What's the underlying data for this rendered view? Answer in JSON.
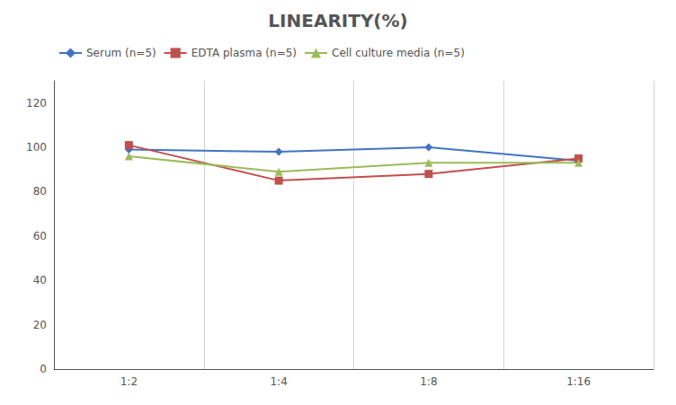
{
  "chart_data": {
    "type": "line",
    "title": "LINEARITY(%)",
    "categories": [
      "1:2",
      "1:4",
      "1:8",
      "1:16"
    ],
    "series": [
      {
        "name": "Serum (n=5)",
        "color": "#4472C4",
        "marker": "diamond",
        "values": [
          99,
          98,
          100,
          94
        ]
      },
      {
        "name": "EDTA plasma (n=5)",
        "color": "#C0504D",
        "marker": "square",
        "values": [
          101,
          85,
          88,
          95
        ]
      },
      {
        "name": "Cell culture media (n=5)",
        "color": "#9BBB59",
        "marker": "triangle",
        "values": [
          96,
          89,
          93,
          93
        ]
      }
    ],
    "ylim": [
      0,
      130
    ],
    "yticks": [
      0,
      20,
      40,
      60,
      80,
      100,
      120
    ],
    "grid": true,
    "legend": "upper left"
  }
}
